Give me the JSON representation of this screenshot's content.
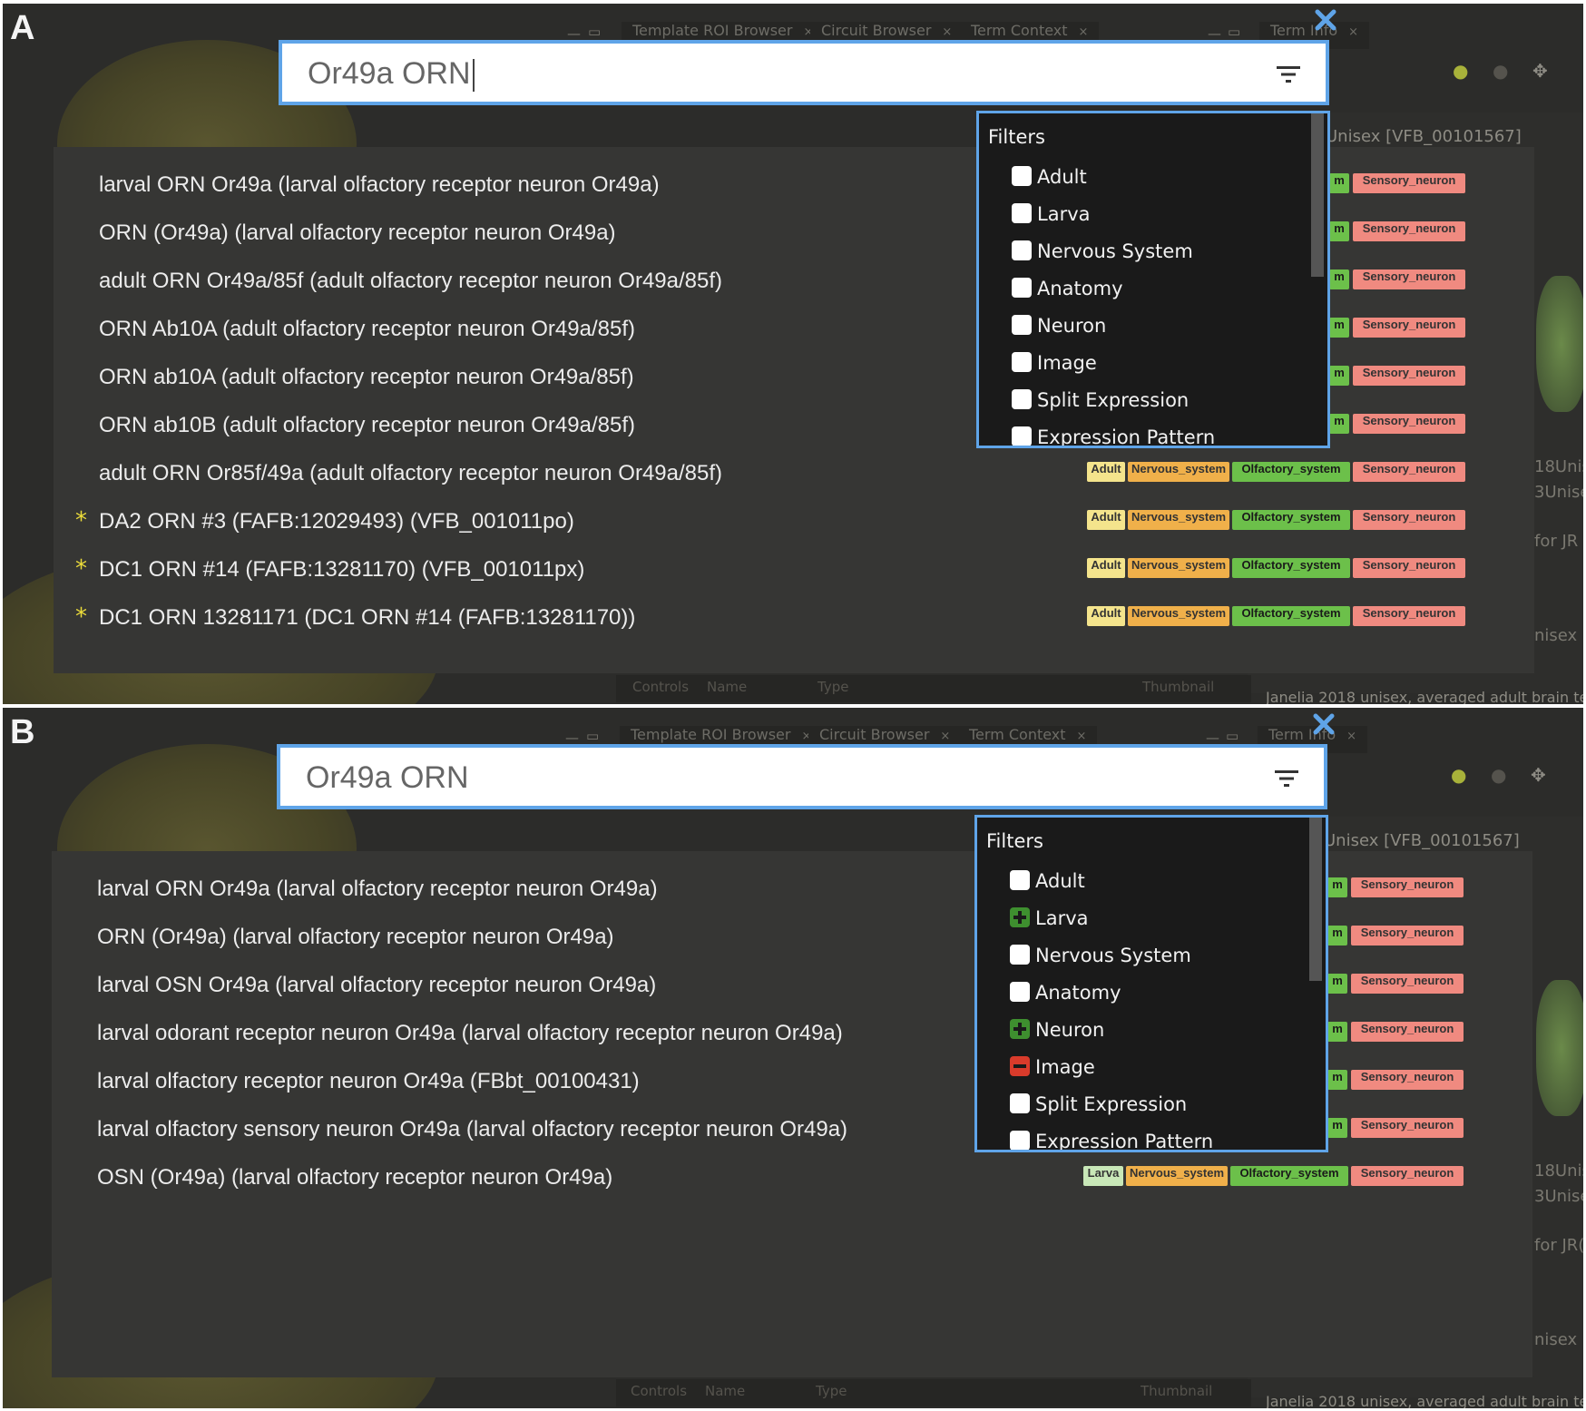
{
  "colors": {
    "accent_border": "#5fa4e8",
    "tag_adult": "#f4e48c",
    "tag_larva": "#c9e8b8",
    "tag_nervous": "#f0b04a",
    "tag_olfactory": "#6cc04a",
    "tag_sensory": "#f08a80",
    "star": "#ecdc3a",
    "filter_include": "#3e8f2f",
    "filter_exclude": "#d93b2b"
  },
  "panels": [
    {
      "letter": "A",
      "tabs": [
        {
          "label": "Template ROI Browser",
          "close": "×"
        },
        {
          "label": "Circuit Browser",
          "close": "×"
        },
        {
          "label": "Term Context",
          "close": "×"
        },
        {
          "label": "Term Info",
          "close": "×"
        }
      ],
      "window_controls": [
        "—",
        "▭",
        "—",
        "▭"
      ],
      "search": {
        "value": "Or49a ORN",
        "has_caret": true,
        "filter_icon": "filter-list-icon"
      },
      "filters": {
        "title": "Filters",
        "items": [
          {
            "label": "Adult",
            "state": "none"
          },
          {
            "label": "Larva",
            "state": "none"
          },
          {
            "label": "Nervous System",
            "state": "none"
          },
          {
            "label": "Anatomy",
            "state": "none"
          },
          {
            "label": "Neuron",
            "state": "none"
          },
          {
            "label": "Image",
            "state": "none"
          },
          {
            "label": "Split Expression",
            "state": "none"
          },
          {
            "label": "Expression Pattern",
            "state": "none"
          }
        ]
      },
      "right_pane": {
        "header": "Unisex [VFB_00101567]",
        "side_texts": [
          "18Unis",
          "3Unise",
          "for JR",
          "nisex"
        ],
        "footer": "Janelia 2018 unisex, averaged adult brain te",
        "table_headers": [
          "Controls",
          "Name",
          "Type",
          "Thumbnail"
        ]
      },
      "results": [
        {
          "label": "larval ORN Or49a (larval olfactory receptor neuron Or49a)",
          "starred": false,
          "tags": []
        },
        {
          "label": "ORN (Or49a) (larval olfactory receptor neuron Or49a)",
          "starred": false,
          "tags": []
        },
        {
          "label": "adult ORN Or49a/85f (adult olfactory receptor neuron Or49a/85f)",
          "starred": false,
          "tags": []
        },
        {
          "label": "ORN Ab10A (adult olfactory receptor neuron Or49a/85f)",
          "starred": false,
          "tags": []
        },
        {
          "label": "ORN ab10A (adult olfactory receptor neuron Or49a/85f)",
          "starred": false,
          "tags": []
        },
        {
          "label": "ORN ab10B (adult olfactory receptor neuron Or49a/85f)",
          "starred": false,
          "tags": []
        },
        {
          "label": "adult ORN Or85f/49a (adult olfactory receptor neuron Or49a/85f)",
          "starred": false,
          "tags": [
            "Adult",
            "Nervous_system",
            "Olfactory_system",
            "Sensory_neuron"
          ]
        },
        {
          "label": "DA2 ORN #3 (FAFB:12029493) (VFB_001011po)",
          "starred": true,
          "tags": [
            "Adult",
            "Nervous_system",
            "Olfactory_system",
            "Sensory_neuron"
          ]
        },
        {
          "label": "DC1 ORN #14 (FAFB:13281170) (VFB_001011px)",
          "starred": true,
          "tags": [
            "Adult",
            "Nervous_system",
            "Olfactory_system",
            "Sensory_neuron"
          ]
        },
        {
          "label": "DC1 ORN 13281171 (DC1 ORN #14 (FAFB:13281170))",
          "starred": true,
          "tags": [
            "Adult",
            "Nervous_system",
            "Olfactory_system",
            "Sensory_neuron"
          ]
        }
      ],
      "obscured_tag_prefix": "m",
      "obscured_tag": "Sensory_neuron"
    },
    {
      "letter": "B",
      "tabs": [
        {
          "label": "Template ROI Browser",
          "close": "×"
        },
        {
          "label": "Circuit Browser",
          "close": "×"
        },
        {
          "label": "Term Context",
          "close": "×"
        },
        {
          "label": "Term Info",
          "close": "×"
        }
      ],
      "window_controls": [
        "—",
        "▭",
        "—",
        "▭"
      ],
      "search": {
        "value": "Or49a ORN",
        "has_caret": false,
        "filter_icon": "filter-list-icon"
      },
      "filters": {
        "title": "Filters",
        "items": [
          {
            "label": "Adult",
            "state": "none"
          },
          {
            "label": "Larva",
            "state": "include"
          },
          {
            "label": "Nervous System",
            "state": "none"
          },
          {
            "label": "Anatomy",
            "state": "none"
          },
          {
            "label": "Neuron",
            "state": "include"
          },
          {
            "label": "Image",
            "state": "exclude"
          },
          {
            "label": "Split Expression",
            "state": "none"
          },
          {
            "label": "Expression Pattern",
            "state": "none"
          }
        ]
      },
      "right_pane": {
        "header": "Unisex [VFB_00101567]",
        "side_texts": [
          "18Unis",
          "3Unise",
          "for JR(",
          "nisex"
        ],
        "footer": "Janelia 2018 unisex, averaged adult brain te",
        "table_headers": [
          "Controls",
          "Name",
          "Type",
          "Thumbnail"
        ]
      },
      "results": [
        {
          "label": "larval ORN Or49a (larval olfactory receptor neuron Or49a)",
          "starred": false,
          "tags": []
        },
        {
          "label": "ORN (Or49a) (larval olfactory receptor neuron Or49a)",
          "starred": false,
          "tags": []
        },
        {
          "label": "larval OSN Or49a (larval olfactory receptor neuron Or49a)",
          "starred": false,
          "tags": []
        },
        {
          "label": "larval odorant receptor neuron Or49a (larval olfactory receptor neuron Or49a)",
          "starred": false,
          "tags": []
        },
        {
          "label": "larval olfactory receptor neuron Or49a (FBbt_00100431)",
          "starred": false,
          "tags": []
        },
        {
          "label": "larval olfactory sensory neuron Or49a (larval olfactory receptor neuron Or49a)",
          "starred": false,
          "tags": []
        },
        {
          "label": "OSN (Or49a) (larval olfactory receptor neuron Or49a)",
          "starred": false,
          "tags": [
            "Larva",
            "Nervous_system",
            "Olfactory_system",
            "Sensory_neuron"
          ]
        }
      ],
      "obscured_tag_prefix": "m",
      "obscured_tag": "Sensory_neuron"
    }
  ]
}
